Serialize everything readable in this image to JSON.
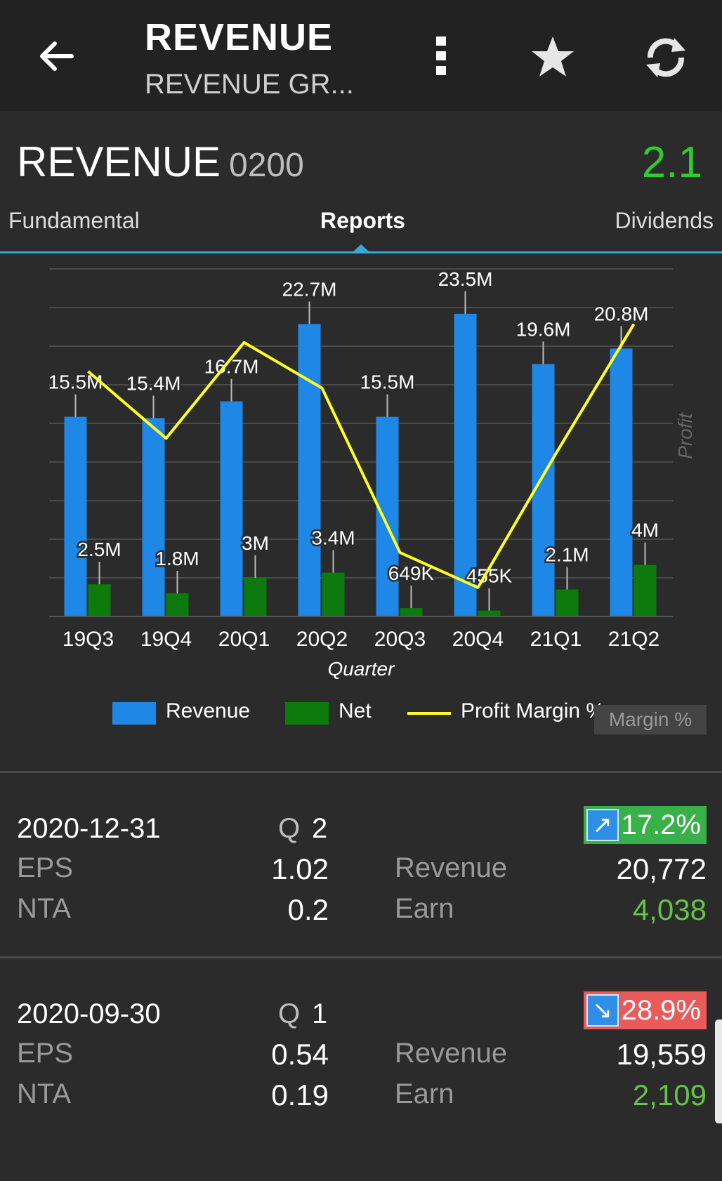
{
  "appbar": {
    "title": "REVENUE",
    "subtitle": "REVENUE GR...",
    "icons": [
      "back-arrow-icon",
      "more-vert-icon",
      "star-icon",
      "refresh-icon"
    ]
  },
  "stock": {
    "name": "REVENUE",
    "code": "0200",
    "price": "2.1",
    "price_color": "#2bcf2b"
  },
  "tabs": [
    {
      "label": "Fundamental",
      "active": false
    },
    {
      "label": "Reports",
      "active": true
    },
    {
      "label": "Dividends",
      "active": false
    }
  ],
  "chart_data": {
    "type": "bar",
    "categories": [
      "19Q3",
      "19Q4",
      "20Q1",
      "20Q2",
      "20Q3",
      "20Q4",
      "21Q1",
      "21Q2"
    ],
    "xlabel": "Quarter",
    "ylabel_right": "Profit",
    "series": [
      {
        "name": "Revenue",
        "color": "#1f87e5",
        "values": [
          15.5,
          15.4,
          16.7,
          22.7,
          15.5,
          23.5,
          19.6,
          20.8
        ],
        "labels": [
          "15.5M",
          "15.4M",
          "16.7M",
          "22.7M",
          "15.5M",
          "23.5M",
          "19.6M",
          "20.8M"
        ]
      },
      {
        "name": "Net",
        "color": "#0d7a0d",
        "values": [
          2.5,
          1.8,
          3.0,
          3.4,
          0.649,
          0.455,
          2.1,
          4.0
        ],
        "labels": [
          "2.5M",
          "1.8M",
          "3M",
          "3.4M",
          "649K",
          "455K",
          "2.1M",
          "4M"
        ]
      },
      {
        "name": "Profit Margin %",
        "color": "#ffff22",
        "type": "line",
        "values": [
          16.1,
          11.7,
          18.0,
          15.0,
          4.2,
          1.9,
          10.7,
          19.2
        ]
      }
    ],
    "ylim": [
      0,
      26
    ],
    "margin_ylim": [
      0,
      22
    ],
    "grid": true,
    "legend": "bottom",
    "margin_axis_label": "Margin %"
  },
  "reports": [
    {
      "date": "2020-12-31",
      "q_label": "Q",
      "q": "2",
      "eps_label": "EPS",
      "eps": "1.02",
      "nta_label": "NTA",
      "nta": "0.2",
      "revenue_label": "Revenue",
      "revenue": "20,772",
      "earn_label": "Earn",
      "earn": "4,038",
      "change": "17.2%",
      "direction": "up",
      "arrow": "↗"
    },
    {
      "date": "2020-09-30",
      "q_label": "Q",
      "q": "1",
      "eps_label": "EPS",
      "eps": "0.54",
      "nta_label": "NTA",
      "nta": "0.19",
      "revenue_label": "Revenue",
      "revenue": "19,559",
      "earn_label": "Earn",
      "earn": "2,109",
      "change": "28.9%",
      "direction": "down",
      "arrow": "↘"
    }
  ]
}
